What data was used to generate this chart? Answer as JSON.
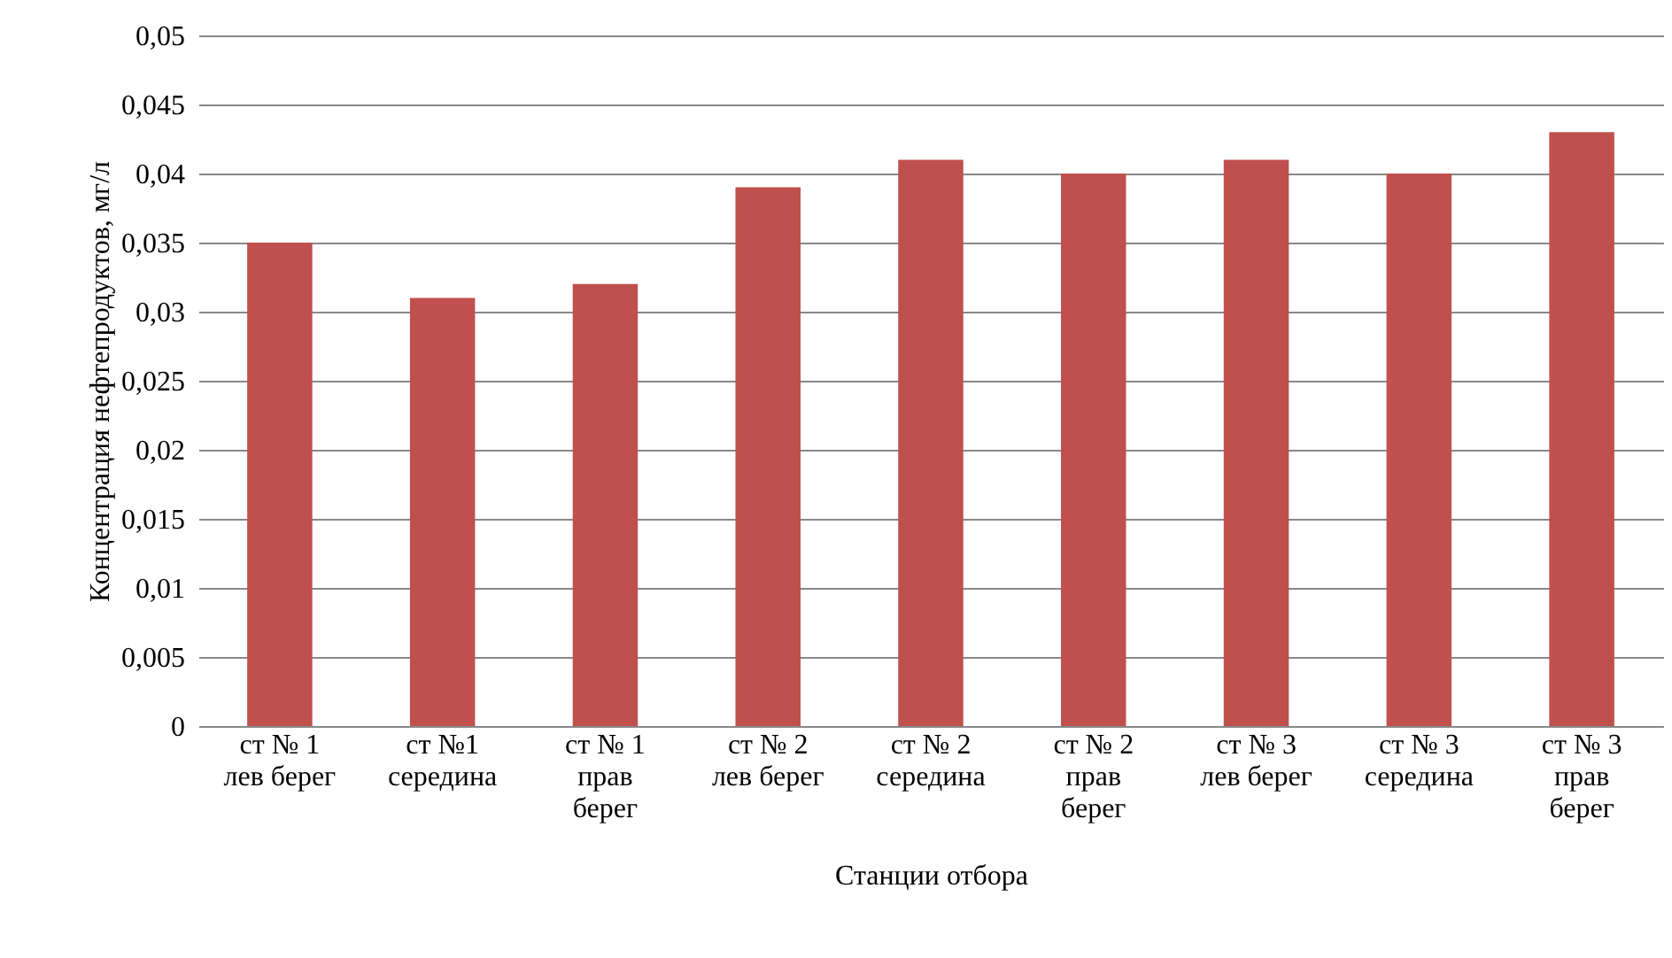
{
  "chart_data": {
    "type": "bar",
    "xlabel": "Станции отбора",
    "ylabel": "Концентрация нефтепродуктов, мг/л",
    "categories": [
      "ст № 1\nлев берег",
      "ст  №1\nсередина",
      "ст  № 1\nправ\nберег",
      "ст № 2\nлев берег",
      "ст № 2\nсередина",
      "ст № 2\nправ\nберег",
      "ст № 3\nлев берег",
      "ст № 3\nсередина",
      "ст № 3\nправ\nберег"
    ],
    "values": [
      0.035,
      0.031,
      0.032,
      0.039,
      0.041,
      0.04,
      0.041,
      0.04,
      0.043
    ],
    "color": "#c0504d",
    "ylim": [
      0,
      0.05
    ],
    "yticks": [
      0,
      {
        "value": 0.005,
        "label": "0,005"
      },
      {
        "value": 0.01,
        "label": "0,01"
      },
      {
        "value": 0.015,
        "label": "0,015"
      },
      {
        "value": 0.02,
        "label": "0,02"
      },
      {
        "value": 0.025,
        "label": "0,025"
      },
      {
        "value": 0.03,
        "label": "0,03"
      },
      {
        "value": 0.035,
        "label": "0,035"
      },
      {
        "value": 0.04,
        "label": "0,04"
      },
      {
        "value": 0.045,
        "label": "0,045"
      },
      {
        "value": 0.05,
        "label": "0,05"
      }
    ],
    "grid": "y"
  }
}
